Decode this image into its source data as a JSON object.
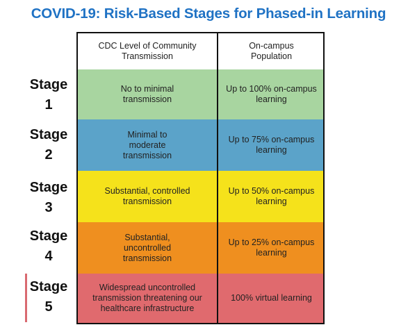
{
  "title": "COVID-19: Risk-Based Stages for Phased-in Learning",
  "headers": {
    "col1": "CDC Level of Community Transmission",
    "col2": "On-campus Population"
  },
  "stages": [
    {
      "label_word": "Stage",
      "label_num": "1",
      "transmission": "No to minimal transmission",
      "population": "Up to 100% on-campus learning",
      "color": "#a8d5a0"
    },
    {
      "label_word": "Stage",
      "label_num": "2",
      "transmission": "Minimal to moderate transmission",
      "population": "Up to 75% on-campus learning",
      "color": "#5ba3c9"
    },
    {
      "label_word": "Stage",
      "label_num": "3",
      "transmission": "Substantial, controlled transmission",
      "population": "Up to 50% on-campus learning",
      "color": "#f5e21b"
    },
    {
      "label_word": "Stage",
      "label_num": "4",
      "transmission": "Substantial, uncontrolled transmission",
      "population": "Up to 25% on-campus learning",
      "color": "#ef8f1f"
    },
    {
      "label_word": "Stage",
      "label_num": "5",
      "transmission": "Widespread uncontrolled transmission threatening our healthcare infrastructure",
      "population": "100% virtual learning",
      "color": "#e06a6e"
    }
  ]
}
